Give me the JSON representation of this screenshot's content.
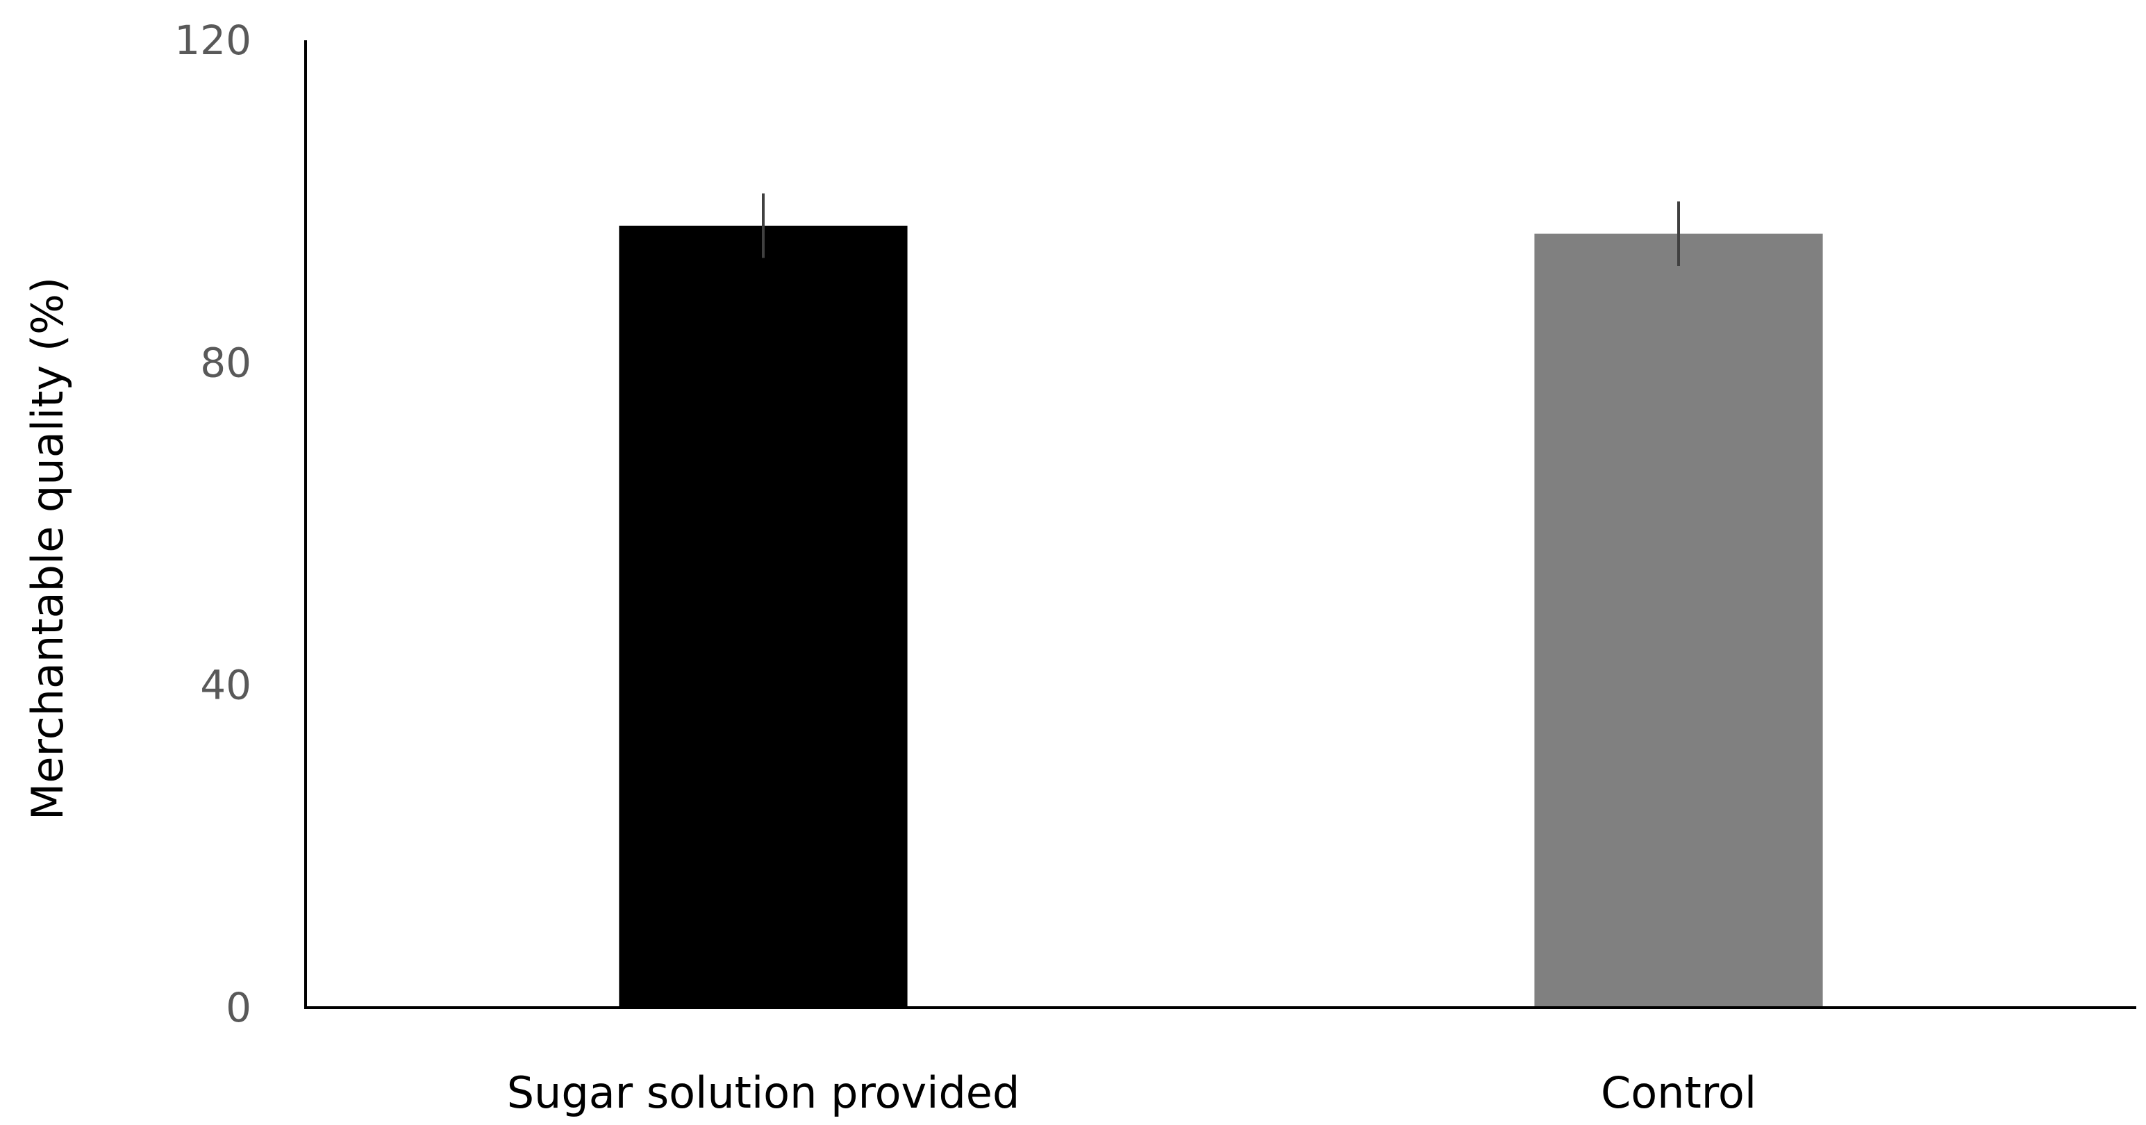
{
  "chart_data": {
    "type": "bar",
    "title": "",
    "xlabel": "",
    "ylabel": "Merchantable quality (%)",
    "categories": [
      "Sugar solution provided",
      "Control"
    ],
    "values": [
      97,
      96
    ],
    "error": [
      4,
      4
    ],
    "bar_colors": [
      "#000000",
      "#808080"
    ],
    "error_bar_color": "#404040",
    "ylim": [
      0,
      120
    ],
    "yticks": [
      0,
      40,
      80,
      120
    ],
    "ytick_labels": [
      "0",
      "40",
      "80",
      "120"
    ],
    "grid": false,
    "legend": "none"
  }
}
